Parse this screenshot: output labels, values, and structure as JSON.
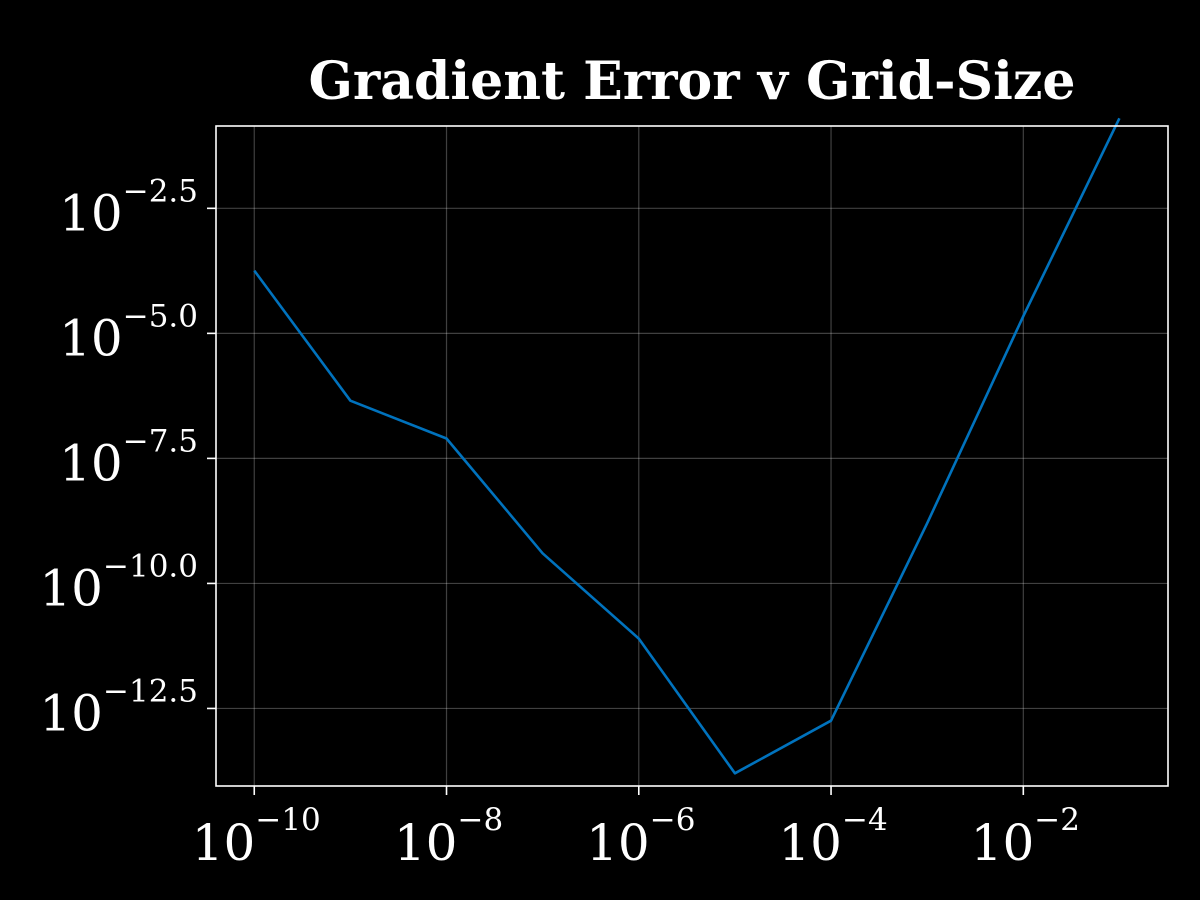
{
  "chart_data": {
    "type": "line",
    "title": "Gradient Error v Grid-Size",
    "xlabel": "",
    "ylabel": "",
    "x_scale": "log",
    "y_scale": "log",
    "x_tick_base": "10",
    "x_ticks": [
      {
        "value": 1e-10,
        "exp": "−10"
      },
      {
        "value": 1e-08,
        "exp": "−8"
      },
      {
        "value": 1e-06,
        "exp": "−6"
      },
      {
        "value": 0.0001,
        "exp": "−4"
      },
      {
        "value": 0.01,
        "exp": "−2"
      }
    ],
    "y_tick_base": "10",
    "y_ticks": [
      {
        "value": 0.0031623,
        "exp": "−2.5"
      },
      {
        "value": 1e-05,
        "exp": "−5.0"
      },
      {
        "value": 3.1623e-08,
        "exp": "−7.5"
      },
      {
        "value": 1e-10,
        "exp": "−10.0"
      },
      {
        "value": 3.1623e-13,
        "exp": "−12.5"
      }
    ],
    "xlim": [
      4e-11,
      0.32
    ],
    "ylim": [
      8.9e-15,
      0.14
    ],
    "grid": true,
    "series": [
      {
        "color": "#0072BD",
        "x": [
          1e-10,
          1e-09,
          1e-08,
          1e-07,
          1e-06,
          1e-05,
          0.0001,
          0.001,
          0.01,
          0.1
        ],
        "y": [
          0.00018,
          4.5e-07,
          7.9e-08,
          4e-10,
          7.9e-12,
          1.6e-14,
          1.8e-13,
          1.6e-09,
          2.2e-05,
          0.2
        ]
      }
    ]
  }
}
